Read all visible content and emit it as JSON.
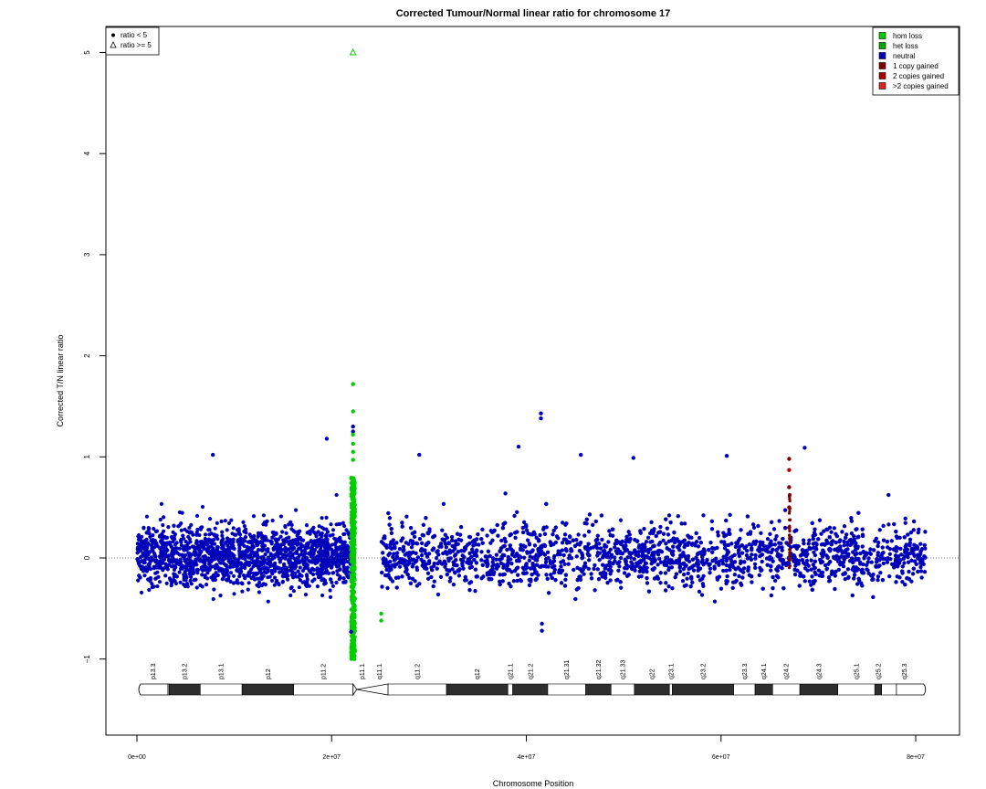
{
  "chart_data": {
    "type": "scatter",
    "title": "Corrected Tumour/Normal linear ratio for chromosome  17",
    "xlabel": "Chromosome Position",
    "ylabel": "Corrected T/N linear ratio",
    "xlim": [
      -3200000,
      84500000
    ],
    "ylim": [
      -1.75,
      5.25
    ],
    "x_ticks": [
      {
        "value": 0,
        "label": "0e+00"
      },
      {
        "value": 20000000,
        "label": "2e+07"
      },
      {
        "value": 40000000,
        "label": "4e+07"
      },
      {
        "value": 60000000,
        "label": "6e+07"
      },
      {
        "value": 80000000,
        "label": "8e+07"
      }
    ],
    "y_ticks": [
      {
        "value": -1,
        "label": "−1"
      },
      {
        "value": 0,
        "label": "0"
      },
      {
        "value": 1,
        "label": "1"
      },
      {
        "value": 2,
        "label": "2"
      },
      {
        "value": 3,
        "label": "3"
      },
      {
        "value": 4,
        "label": "4"
      },
      {
        "value": 5,
        "label": "5"
      }
    ],
    "reference_line": {
      "y": 0,
      "style": "dotted",
      "color": "#555555"
    },
    "grid": false,
    "colors": {
      "hom_loss": "#00cc00",
      "het_loss": "#00aa00",
      "neutral": "#0000bb",
      "one_copy_gained": "#7f0000",
      "two_copies_gained": "#aa0000",
      "gt_two_copies_gained": "#dd2222"
    },
    "shape_legend": {
      "placement": "top-left",
      "entries": [
        {
          "shape": "dot",
          "label": "ratio < 5"
        },
        {
          "shape": "triangle",
          "label": "ratio >= 5"
        }
      ]
    },
    "color_legend": {
      "placement": "top-right",
      "entries": [
        {
          "key": "hom_loss",
          "label": "hom loss"
        },
        {
          "key": "het_loss",
          "label": "het loss"
        },
        {
          "key": "neutral",
          "label": "neutral"
        },
        {
          "key": "one_copy_gained",
          "label": "1 copy gained"
        },
        {
          "key": "two_copies_gained",
          "label": "2 copies gained"
        },
        {
          "key": "gt_two_copies_gained",
          "label": ">2 copies gained"
        }
      ]
    },
    "neutral_segments": [
      {
        "start": 0,
        "end": 22000000
      },
      {
        "start": 25100000,
        "end": 81000000
      }
    ],
    "loss_segment": {
      "start": 22000000,
      "end": 22400000,
      "y_range": [
        -1.0,
        0.8
      ]
    },
    "gain_segment": {
      "start": 67000000,
      "end": 67100000,
      "y_range": [
        -0.1,
        0.65
      ]
    },
    "highlight_points": [
      {
        "x": 22200000,
        "y": 5.0,
        "state": "hom_loss",
        "shape": "triangle"
      },
      {
        "x": 22200000,
        "y": 1.72,
        "state": "hom_loss"
      },
      {
        "x": 22200000,
        "y": 1.45,
        "state": "hom_loss"
      },
      {
        "x": 22200000,
        "y": 1.3,
        "state": "neutral"
      },
      {
        "x": 22200000,
        "y": 1.25,
        "state": "neutral"
      },
      {
        "x": 22200000,
        "y": 1.22,
        "state": "hom_loss"
      },
      {
        "x": 22200000,
        "y": 1.13,
        "state": "hom_loss"
      },
      {
        "x": 22200000,
        "y": 1.05,
        "state": "hom_loss"
      },
      {
        "x": 22200000,
        "y": 0.97,
        "state": "hom_loss"
      },
      {
        "x": 22000000,
        "y": -0.73,
        "state": "neutral"
      },
      {
        "x": 25100000,
        "y": -0.55,
        "state": "hom_loss"
      },
      {
        "x": 25100000,
        "y": -0.62,
        "state": "hom_loss"
      },
      {
        "x": 41500000,
        "y": 1.43,
        "state": "neutral"
      },
      {
        "x": 41500000,
        "y": 1.38,
        "state": "neutral"
      },
      {
        "x": 19500000,
        "y": 1.18,
        "state": "neutral"
      },
      {
        "x": 7800000,
        "y": 1.02,
        "state": "neutral"
      },
      {
        "x": 29000000,
        "y": 1.02,
        "state": "neutral"
      },
      {
        "x": 39200000,
        "y": 1.1,
        "state": "neutral"
      },
      {
        "x": 45600000,
        "y": 1.02,
        "state": "neutral"
      },
      {
        "x": 68600000,
        "y": 1.09,
        "state": "neutral"
      },
      {
        "x": 60600000,
        "y": 1.01,
        "state": "neutral"
      },
      {
        "x": 51000000,
        "y": 0.99,
        "state": "neutral"
      },
      {
        "x": 41600000,
        "y": -0.72,
        "state": "neutral"
      },
      {
        "x": 41600000,
        "y": -0.65,
        "state": "neutral"
      },
      {
        "x": 67000000,
        "y": 0.98,
        "state": "one_copy_gained"
      },
      {
        "x": 67000000,
        "y": 0.87,
        "state": "two_copies_gained"
      },
      {
        "x": 67000000,
        "y": 0.7,
        "state": "one_copy_gained"
      },
      {
        "x": 67000000,
        "y": 0.5,
        "state": "one_copy_gained"
      },
      {
        "x": 67000000,
        "y": 0.3,
        "state": "one_copy_gained"
      }
    ],
    "ideogram": {
      "bands": [
        {
          "name": "p13.3",
          "start": 0,
          "end": 3300000,
          "stain": "gneg"
        },
        {
          "name": "p13.2",
          "start": 3300000,
          "end": 6500000,
          "stain": "gpos"
        },
        {
          "name": "p13.1",
          "start": 6500000,
          "end": 10800000,
          "stain": "gneg"
        },
        {
          "name": "p12",
          "start": 10800000,
          "end": 16100000,
          "stain": "gpos"
        },
        {
          "name": "p11.2",
          "start": 16100000,
          "end": 22200000,
          "stain": "gneg"
        },
        {
          "name": "p11.1",
          "start": 22200000,
          "end": 24000000,
          "stain": "acen"
        },
        {
          "name": "q11.1",
          "start": 24000000,
          "end": 25800000,
          "stain": "acen"
        },
        {
          "name": "q11.2",
          "start": 25800000,
          "end": 31800000,
          "stain": "gneg"
        },
        {
          "name": "q12",
          "start": 31800000,
          "end": 38100000,
          "stain": "gpos"
        },
        {
          "name": "q21.1",
          "start": 38100000,
          "end": 38600000,
          "stain": "gneg"
        },
        {
          "name": "q21.2",
          "start": 38600000,
          "end": 42200000,
          "stain": "gpos"
        },
        {
          "name": "q21.31",
          "start": 42200000,
          "end": 46100000,
          "stain": "gneg"
        },
        {
          "name": "q21.32",
          "start": 46100000,
          "end": 48700000,
          "stain": "gpos"
        },
        {
          "name": "q21.33",
          "start": 48700000,
          "end": 51100000,
          "stain": "gneg"
        },
        {
          "name": "q22",
          "start": 51100000,
          "end": 54700000,
          "stain": "gpos"
        },
        {
          "name": "q23.1",
          "start": 54700000,
          "end": 55000000,
          "stain": "gneg"
        },
        {
          "name": "q23.2",
          "start": 55000000,
          "end": 61300000,
          "stain": "gpos"
        },
        {
          "name": "q23.3",
          "start": 61300000,
          "end": 63500000,
          "stain": "gneg"
        },
        {
          "name": "q24.1",
          "start": 63500000,
          "end": 65300000,
          "stain": "gpos"
        },
        {
          "name": "q24.2",
          "start": 65300000,
          "end": 68100000,
          "stain": "gneg"
        },
        {
          "name": "q24.3",
          "start": 68100000,
          "end": 72000000,
          "stain": "gpos"
        },
        {
          "name": "q25.1",
          "start": 72000000,
          "end": 75800000,
          "stain": "gneg"
        },
        {
          "name": "q25.2",
          "start": 75800000,
          "end": 76500000,
          "stain": "gpos"
        },
        {
          "name": "q25.3",
          "start": 76500000,
          "end": 81200000,
          "stain": "gneg"
        }
      ]
    }
  }
}
